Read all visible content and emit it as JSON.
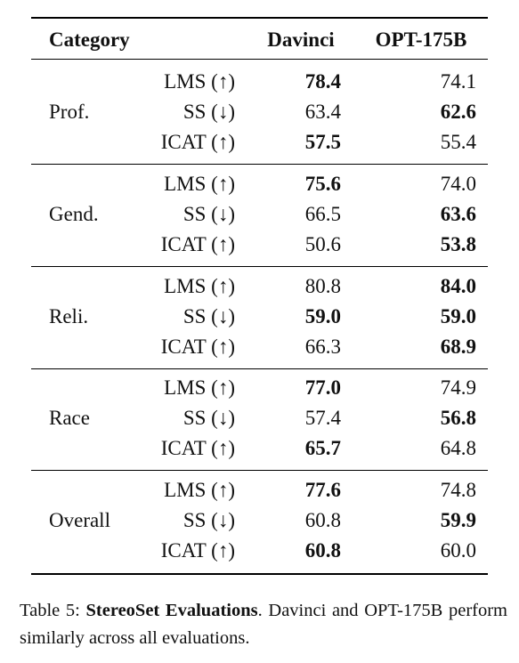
{
  "table": {
    "header": [
      "Category",
      "Davinci",
      "OPT-175B"
    ],
    "groups": [
      {
        "category": "Prof.",
        "rows": [
          {
            "metric": "LMS (↑)",
            "davinci": "78.4",
            "opt_175b": "74.1",
            "bold": [
              "davinci"
            ]
          },
          {
            "metric": "SS (↓)",
            "davinci": "63.4",
            "opt_175b": "62.6",
            "bold": [
              "opt_175b"
            ]
          },
          {
            "metric": "ICAT (↑)",
            "davinci": "57.5",
            "opt_175b": "55.4",
            "bold": [
              "davinci"
            ]
          }
        ]
      },
      {
        "category": "Gend.",
        "rows": [
          {
            "metric": "LMS (↑)",
            "davinci": "75.6",
            "opt_175b": "74.0",
            "bold": [
              "davinci"
            ]
          },
          {
            "metric": "SS (↓)",
            "davinci": "66.5",
            "opt_175b": "63.6",
            "bold": [
              "opt_175b"
            ]
          },
          {
            "metric": "ICAT (↑)",
            "davinci": "50.6",
            "opt_175b": "53.8",
            "bold": [
              "opt_175b"
            ]
          }
        ]
      },
      {
        "category": "Reli.",
        "rows": [
          {
            "metric": "LMS (↑)",
            "davinci": "80.8",
            "opt_175b": "84.0",
            "bold": [
              "opt_175b"
            ]
          },
          {
            "metric": "SS (↓)",
            "davinci": "59.0",
            "opt_175b": "59.0",
            "bold": [
              "davinci",
              "opt_175b"
            ]
          },
          {
            "metric": "ICAT (↑)",
            "davinci": "66.3",
            "opt_175b": "68.9",
            "bold": [
              "opt_175b"
            ]
          }
        ]
      },
      {
        "category": "Race",
        "rows": [
          {
            "metric": "LMS (↑)",
            "davinci": "77.0",
            "opt_175b": "74.9",
            "bold": [
              "davinci"
            ]
          },
          {
            "metric": "SS (↓)",
            "davinci": "57.4",
            "opt_175b": "56.8",
            "bold": [
              "opt_175b"
            ]
          },
          {
            "metric": "ICAT (↑)",
            "davinci": "65.7",
            "opt_175b": "64.8",
            "bold": [
              "davinci"
            ]
          }
        ]
      },
      {
        "category": "Overall",
        "rows": [
          {
            "metric": "LMS (↑)",
            "davinci": "77.6",
            "opt_175b": "74.8",
            "bold": [
              "davinci"
            ]
          },
          {
            "metric": "SS (↓)",
            "davinci": "60.8",
            "opt_175b": "59.9",
            "bold": [
              "opt_175b"
            ]
          },
          {
            "metric": "ICAT (↑)",
            "davinci": "60.8",
            "opt_175b": "60.0",
            "bold": [
              "davinci"
            ]
          }
        ]
      }
    ]
  },
  "caption": {
    "label": "Table 5:",
    "title": "StereoSet Evaluations",
    "text": ". Davinci and OPT-175B perform similarly across all evaluations."
  }
}
